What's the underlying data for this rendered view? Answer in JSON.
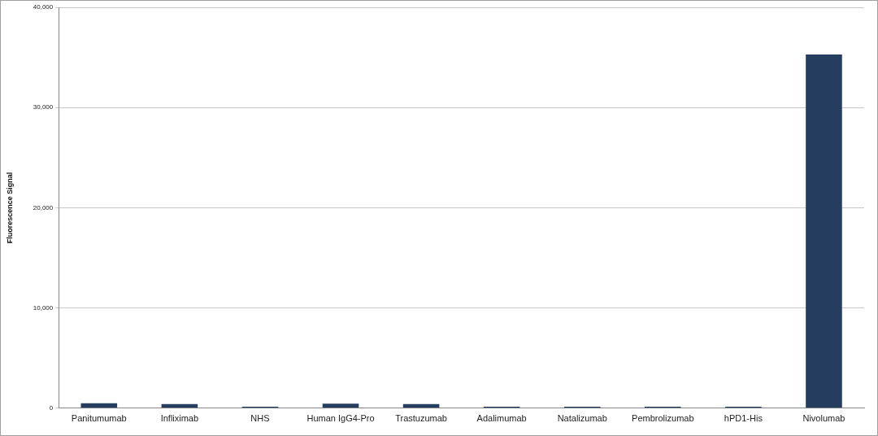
{
  "chart_data": {
    "type": "bar",
    "y_label": "Fluorescence Signal",
    "categories": [
      "Panitumumab",
      "Infliximab",
      "NHS",
      "Human IgG4-Pro",
      "Trastuzumab",
      "Adalimumab",
      "Natalizumab",
      "Pembrolizumab",
      "hPD1-His",
      "Nivolumab"
    ],
    "values": [
      500,
      400,
      150,
      450,
      400,
      150,
      150,
      150,
      150,
      35300
    ],
    "color": "#253d5e",
    "ylim": [
      0,
      40000
    ],
    "yticks": [
      0,
      {
        "value": 10000,
        "label": "10,000"
      },
      {
        "value": 20000,
        "label": "20,000"
      },
      {
        "value": 30000,
        "label": "30,000"
      },
      {
        "value": 40000,
        "label": "40,000"
      }
    ],
    "grid": true
  }
}
